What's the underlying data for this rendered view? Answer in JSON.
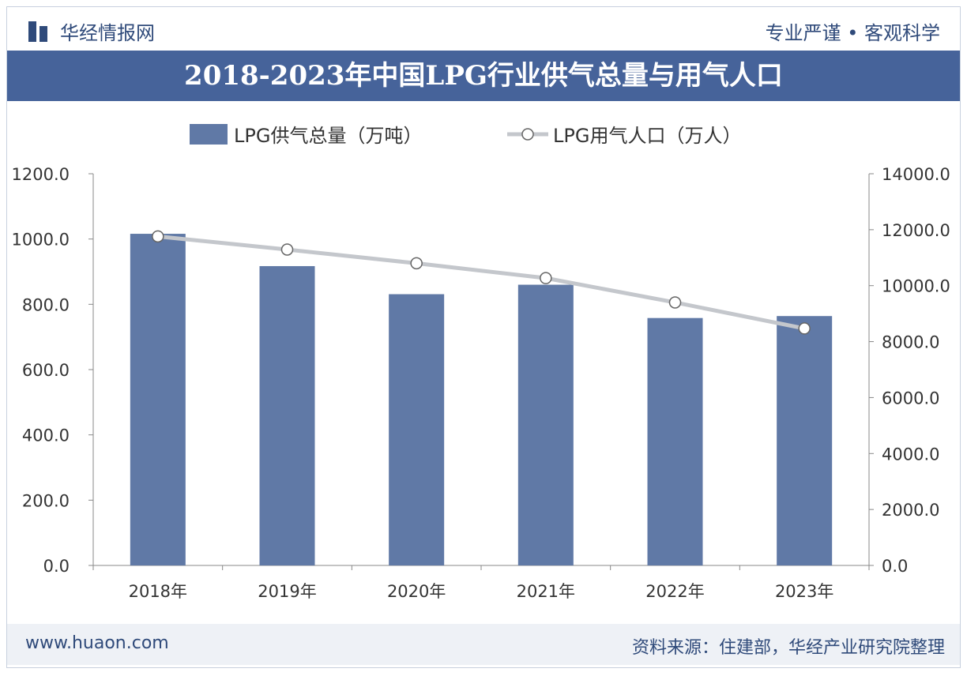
{
  "header": {
    "brand": "华经情报网",
    "slogan": "专业严谨 • 客观科学"
  },
  "footer": {
    "site": "www.huaon.com",
    "source": "资料来源：住建部，华经产业研究院整理"
  },
  "colors": {
    "bar": "#6079a6",
    "line": "#c4c7cc",
    "title_bg": "#46639a"
  },
  "chart_data": {
    "type": "bar+line",
    "title": "2018-2023年中国LPG行业供气总量与用气人口",
    "categories": [
      "2018年",
      "2019年",
      "2020年",
      "2021年",
      "2022年",
      "2023年"
    ],
    "series": [
      {
        "name": "LPG供气总量（万吨）",
        "type": "bar",
        "axis": "left",
        "values": [
          1016,
          917,
          831,
          860,
          758,
          764
        ]
      },
      {
        "name": "LPG用气人口（万人）",
        "type": "line",
        "axis": "right",
        "values": [
          11760,
          11290,
          10800,
          10270,
          9400,
          8470
        ]
      }
    ],
    "y_left": {
      "range": [
        0,
        1200
      ],
      "ticks": [
        "0.0",
        "200.0",
        "400.0",
        "600.0",
        "800.0",
        "1000.0",
        "1200.0"
      ]
    },
    "y_right": {
      "range": [
        0,
        14000
      ],
      "ticks": [
        "0.0",
        "2000.0",
        "4000.0",
        "6000.0",
        "8000.0",
        "10000.0",
        "12000.0",
        "14000.0"
      ]
    },
    "legend": "top",
    "grid": false
  }
}
